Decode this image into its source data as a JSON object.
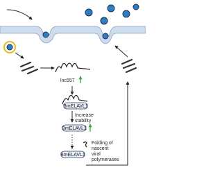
{
  "labels": {
    "lncrna": "lnc557",
    "protein": [
      "BmELAVL1",
      "BmELAVL1",
      "BmELAVL1"
    ],
    "stability": [
      "Increase",
      "stability"
    ],
    "folding": [
      "Folding of",
      "nascent",
      "viral",
      "polymerases"
    ]
  }
}
